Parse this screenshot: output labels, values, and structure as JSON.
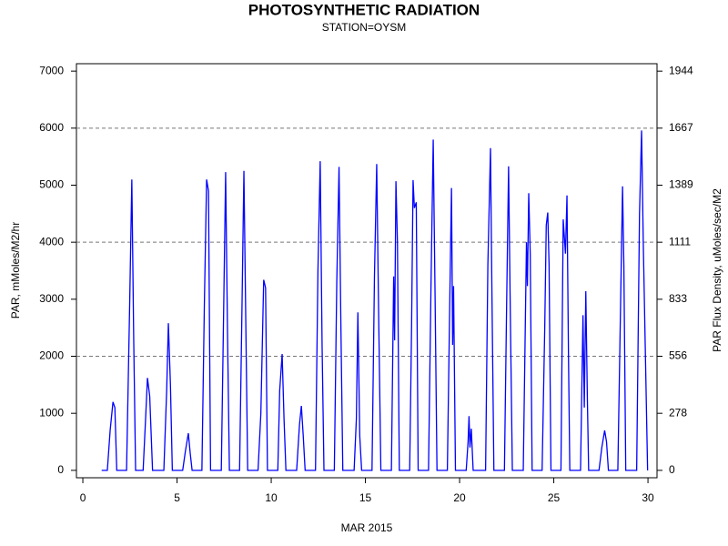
{
  "chart_data": {
    "type": "line",
    "title": "PHOTOSYNTHETIC RADIATION",
    "subtitle": "STATION=OYSM",
    "xlabel": "MAR 2015",
    "ylabel": "PAR, mMoles/M2/hr",
    "y2label": "PAR Flux Density, uMoles/sec/M2",
    "color": "#0000ff",
    "x": [
      1.0,
      1.3,
      1.45,
      1.6,
      1.7,
      1.8,
      2.32,
      2.48,
      2.6,
      2.7,
      2.8,
      3.2,
      3.33,
      3.43,
      3.55,
      3.7,
      4.3,
      4.45,
      4.54,
      4.65,
      4.75,
      5.3,
      5.45,
      5.6,
      5.7,
      5.8,
      6.32,
      6.45,
      6.57,
      6.67,
      6.78,
      7.35,
      7.47,
      7.58,
      7.68,
      7.78,
      8.32,
      8.45,
      8.55,
      8.65,
      8.75,
      9.3,
      9.45,
      9.6,
      9.7,
      9.8,
      10.35,
      10.45,
      10.58,
      10.68,
      10.78,
      11.35,
      11.5,
      11.6,
      11.7,
      11.8,
      12.35,
      12.48,
      12.6,
      12.7,
      12.8,
      13.35,
      13.48,
      13.6,
      13.7,
      13.8,
      14.4,
      14.52,
      14.6,
      14.7,
      14.8,
      15.35,
      15.48,
      15.6,
      15.7,
      15.82,
      16.38,
      16.5,
      16.55,
      16.62,
      16.7,
      16.8,
      17.35,
      17.45,
      17.53,
      17.6,
      17.7,
      17.8,
      18.35,
      18.48,
      18.6,
      18.7,
      18.8,
      19.35,
      19.48,
      19.57,
      19.63,
      19.68,
      19.78,
      20.35,
      20.45,
      20.5,
      20.55,
      20.62,
      20.72,
      21.38,
      21.5,
      21.64,
      21.72,
      21.82,
      22.38,
      22.5,
      22.6,
      22.68,
      22.8,
      23.38,
      23.55,
      23.6,
      23.67,
      23.75,
      23.85,
      24.38,
      24.52,
      24.6,
      24.68,
      24.75,
      24.85,
      25.38,
      25.5,
      25.62,
      25.7,
      25.78,
      25.85,
      26.42,
      26.55,
      26.62,
      26.7,
      26.78,
      26.85,
      27.4,
      27.55,
      27.7,
      27.8,
      27.9,
      28.4,
      28.55,
      28.65,
      28.72,
      28.82,
      29.4,
      29.55,
      29.66,
      29.75,
      29.98
    ],
    "values": [
      0,
      0,
      700,
      1200,
      1100,
      0,
      0,
      2800,
      5100,
      2300,
      0,
      0,
      900,
      1620,
      1300,
      0,
      0,
      1400,
      2580,
      1500,
      0,
      0,
      350,
      650,
      300,
      0,
      0,
      2900,
      5100,
      4900,
      0,
      0,
      2700,
      5230,
      2400,
      0,
      0,
      2900,
      5250,
      2600,
      0,
      0,
      1000,
      3340,
      3200,
      0,
      0,
      1400,
      2040,
      900,
      0,
      0,
      800,
      1130,
      600,
      0,
      0,
      3500,
      5420,
      2200,
      0,
      0,
      3300,
      5320,
      2500,
      0,
      0,
      900,
      2770,
      600,
      0,
      0,
      3400,
      5370,
      2800,
      0,
      0,
      3400,
      2280,
      5070,
      4000,
      0,
      0,
      2500,
      5090,
      4600,
      4700,
      0,
      0,
      3200,
      5800,
      3000,
      0,
      0,
      3000,
      4950,
      2200,
      3230,
      0,
      0,
      500,
      950,
      400,
      730,
      0,
      0,
      3600,
      5650,
      3000,
      0,
      0,
      3000,
      5330,
      3100,
      0,
      0,
      4000,
      3230,
      4860,
      3800,
      0,
      0,
      2500,
      4300,
      4520,
      3600,
      0,
      0,
      4400,
      3800,
      4820,
      2000,
      0,
      0,
      2720,
      1100,
      3140,
      1300,
      0,
      0,
      400,
      700,
      500,
      0,
      0,
      3000,
      4980,
      3600,
      0,
      0,
      4500,
      5960,
      4000,
      0
    ],
    "xlim": [
      -0.34,
      30.48
    ],
    "xticks": [
      0,
      5,
      10,
      15,
      20,
      25,
      30
    ],
    "ylim": [
      -130,
      7130
    ],
    "yticks": [
      0,
      1000,
      2000,
      3000,
      4000,
      5000,
      6000,
      7000
    ],
    "ygrid": [
      2000,
      4000,
      6000
    ],
    "y2lim": [
      -36.1,
      1980.6
    ],
    "y2ticks": [
      0,
      {
        "value": 277.8,
        "label": "278"
      },
      {
        "value": 555.6,
        "label": "556"
      },
      {
        "value": 833.3,
        "label": "833"
      },
      {
        "value": 1111.1,
        "label": "1111"
      },
      {
        "value": 1388.9,
        "label": "1389"
      },
      {
        "value": 1666.7,
        "label": "1667"
      },
      {
        "value": 1944.4,
        "label": "1944"
      }
    ]
  }
}
